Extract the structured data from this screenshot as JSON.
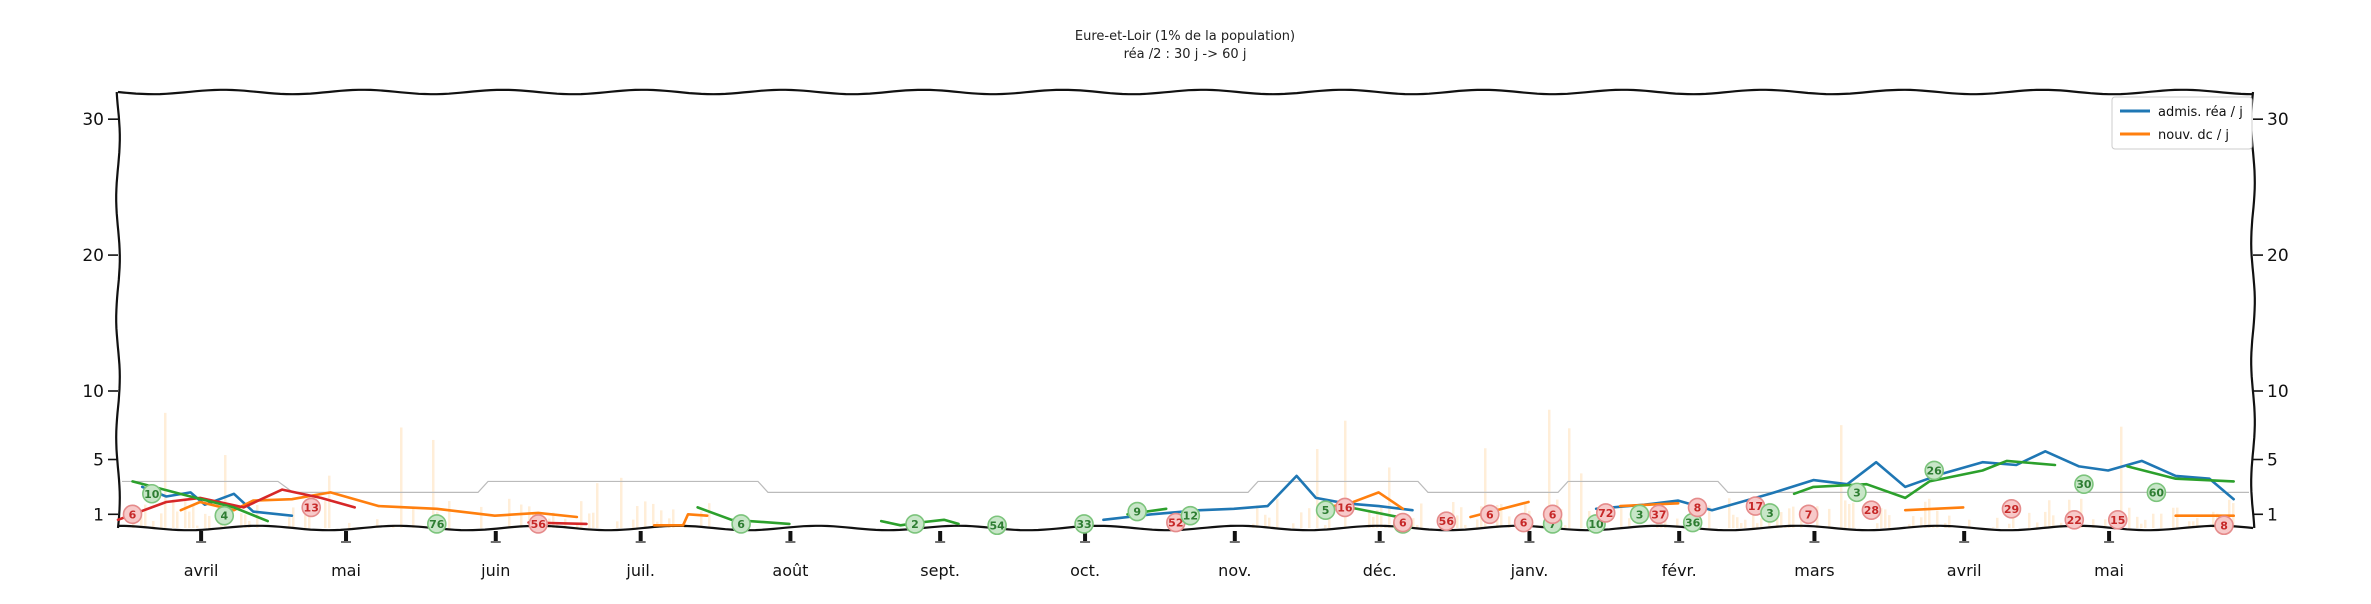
{
  "chart_data": {
    "type": "line",
    "title": "Eure-et-Loir (1% de la population)",
    "subtitle": "réa /2 : 30 j -> 60 j",
    "xlabel": "",
    "ylabel": "",
    "x_range": [
      "2020-03-15",
      "2021-05-31"
    ],
    "ylim": [
      0,
      32
    ],
    "yticks": [
      1,
      5,
      10,
      20,
      30
    ],
    "y_scale": "piecewise: 0-10 expanded, 10-32 compressed",
    "grid": false,
    "legend_position": "top-right",
    "month_ticks": [
      {
        "label": "avril",
        "date": "2020-04-01"
      },
      {
        "label": "mai",
        "date": "2020-05-01"
      },
      {
        "label": "juin",
        "date": "2020-06-01"
      },
      {
        "label": "juil.",
        "date": "2020-07-01"
      },
      {
        "label": "août",
        "date": "2020-08-01"
      },
      {
        "label": "sept.",
        "date": "2020-09-01"
      },
      {
        "label": "oct.",
        "date": "2020-10-01"
      },
      {
        "label": "nov.",
        "date": "2020-11-01"
      },
      {
        "label": "déc.",
        "date": "2020-12-01"
      },
      {
        "label": "janv.",
        "date": "2021-01-01"
      },
      {
        "label": "févr.",
        "date": "2021-02-01"
      },
      {
        "label": "mars",
        "date": "2021-03-01"
      },
      {
        "label": "avril",
        "date": "2021-04-01"
      },
      {
        "label": "mai",
        "date": "2021-05-01"
      }
    ],
    "series": [
      {
        "name": "admis. réa / j",
        "color": "#1f77b4",
        "points": [
          [
            "2020-03-20",
            3.0
          ],
          [
            "2020-03-25",
            2.3
          ],
          [
            "2020-03-30",
            2.6
          ],
          [
            "2020-04-02",
            1.7
          ],
          [
            "2020-04-08",
            2.5
          ],
          [
            "2020-04-12",
            1.2
          ],
          [
            "2020-04-20",
            0.9
          ],
          [
            "2020-05-05",
            0.8
          ],
          [
            "2020-10-05",
            0.6
          ],
          [
            "2020-10-15",
            1.0
          ],
          [
            "2020-10-25",
            1.3
          ],
          [
            "2020-11-01",
            1.4
          ],
          [
            "2020-11-08",
            1.6
          ],
          [
            "2020-11-14",
            3.8
          ],
          [
            "2020-11-18",
            2.2
          ],
          [
            "2020-11-24",
            1.8
          ],
          [
            "2020-12-01",
            1.6
          ],
          [
            "2020-12-08",
            1.3
          ],
          [
            "2021-01-01",
            1.2
          ],
          [
            "2021-01-15",
            1.4
          ],
          [
            "2021-01-25",
            1.7
          ],
          [
            "2021-02-01",
            2.0
          ],
          [
            "2021-02-08",
            1.3
          ],
          [
            "2021-02-20",
            2.5
          ],
          [
            "2021-03-01",
            3.5
          ],
          [
            "2021-03-08",
            3.2
          ],
          [
            "2021-03-14",
            4.8
          ],
          [
            "2021-03-20",
            3.0
          ],
          [
            "2021-03-28",
            4.0
          ],
          [
            "2021-04-05",
            4.8
          ],
          [
            "2021-04-12",
            4.6
          ],
          [
            "2021-04-18",
            5.6
          ],
          [
            "2021-04-25",
            4.5
          ],
          [
            "2021-05-01",
            4.2
          ],
          [
            "2021-05-08",
            4.9
          ],
          [
            "2021-05-15",
            3.8
          ],
          [
            "2021-05-22",
            3.6
          ],
          [
            "2021-05-27",
            2.1
          ]
        ]
      },
      {
        "name": "nouv. dc / j",
        "color": "#ff7f0e",
        "points": [
          [
            "2020-03-28",
            1.3
          ],
          [
            "2020-04-01",
            1.9
          ],
          [
            "2020-04-08",
            1.3
          ],
          [
            "2020-04-12",
            2.0
          ],
          [
            "2020-04-20",
            2.1
          ],
          [
            "2020-04-28",
            2.6
          ],
          [
            "2020-05-08",
            1.6
          ],
          [
            "2020-05-20",
            1.4
          ],
          [
            "2020-06-01",
            0.9
          ],
          [
            "2020-06-10",
            1.1
          ],
          [
            "2020-06-18",
            0.8
          ],
          [
            "2020-07-04",
            0.2
          ],
          [
            "2020-07-10",
            0.2
          ],
          [
            "2020-07-11",
            1.0
          ],
          [
            "2020-07-15",
            0.9
          ],
          [
            "2020-11-05",
            1.3
          ],
          [
            "2020-11-20",
            1.5
          ],
          [
            "2020-11-25",
            1.8
          ],
          [
            "2020-12-01",
            2.6
          ],
          [
            "2020-12-06",
            1.4
          ],
          [
            "2020-12-20",
            0.8
          ],
          [
            "2021-01-01",
            1.9
          ],
          [
            "2021-01-20",
            1.6
          ],
          [
            "2021-02-01",
            1.8
          ],
          [
            "2021-02-15",
            1.9
          ],
          [
            "2021-03-01",
            1.4
          ],
          [
            "2021-03-20",
            1.3
          ],
          [
            "2021-04-01",
            1.5
          ],
          [
            "2021-04-15",
            1.7
          ],
          [
            "2021-05-01",
            1.3
          ],
          [
            "2021-05-15",
            0.9
          ],
          [
            "2021-05-27",
            0.9
          ]
        ]
      },
      {
        "name": "",
        "color": "#d62728",
        "points": [
          [
            "2020-03-15",
            0.6
          ],
          [
            "2020-03-25",
            1.9
          ],
          [
            "2020-04-01",
            2.2
          ],
          [
            "2020-04-10",
            1.5
          ],
          [
            "2020-04-18",
            2.8
          ],
          [
            "2020-04-26",
            2.2
          ],
          [
            "2020-05-03",
            1.5
          ],
          [
            "2020-05-25",
            0.5
          ],
          [
            "2020-06-08",
            0.4
          ],
          [
            "2020-06-20",
            0.3
          ],
          [
            "2020-07-05",
            0.1
          ],
          [
            "2020-10-18",
            0.5
          ],
          [
            "2020-11-01",
            0.9
          ],
          [
            "2020-11-15",
            1.2
          ],
          [
            "2020-12-15",
            1.0
          ],
          [
            "2021-01-01",
            1.0
          ],
          [
            "2021-01-15",
            1.1
          ],
          [
            "2021-02-01",
            1.4
          ],
          [
            "2021-02-15",
            1.9
          ],
          [
            "2021-03-05",
            0.9
          ],
          [
            "2021-03-20",
            1.5
          ],
          [
            "2021-04-05",
            1.7
          ],
          [
            "2021-04-20",
            1.4
          ],
          [
            "2021-05-10",
            1.2
          ],
          [
            "2021-05-28",
            0.4
          ]
        ]
      },
      {
        "name": "",
        "color": "#2ca02c",
        "points": [
          [
            "2020-03-18",
            3.4
          ],
          [
            "2020-03-30",
            2.3
          ],
          [
            "2020-04-08",
            1.5
          ],
          [
            "2020-04-15",
            0.5
          ],
          [
            "2020-05-01",
            0.3
          ],
          [
            "2020-05-20",
            0.2
          ],
          [
            "2020-06-05",
            0.1
          ],
          [
            "2020-07-13",
            1.5
          ],
          [
            "2020-07-20",
            0.6
          ],
          [
            "2020-08-01",
            0.3
          ],
          [
            "2020-08-20",
            0.5
          ],
          [
            "2020-08-24",
            0.2
          ],
          [
            "2020-08-28",
            0.4
          ],
          [
            "2020-09-02",
            0.6
          ],
          [
            "2020-09-05",
            0.3
          ],
          [
            "2020-09-25",
            0.2
          ],
          [
            "2020-10-10",
            1.0
          ],
          [
            "2020-10-18",
            1.4
          ],
          [
            "2020-11-01",
            1.6
          ],
          [
            "2020-11-25",
            1.5
          ],
          [
            "2020-12-05",
            0.8
          ],
          [
            "2021-01-01",
            0.7
          ],
          [
            "2021-01-20",
            1.1
          ],
          [
            "2021-02-10",
            1.5
          ],
          [
            "2021-02-25",
            2.5
          ],
          [
            "2021-03-01",
            3.0
          ],
          [
            "2021-03-12",
            3.2
          ],
          [
            "2021-03-20",
            2.2
          ],
          [
            "2021-03-25",
            3.4
          ],
          [
            "2021-04-05",
            4.2
          ],
          [
            "2021-04-10",
            4.9
          ],
          [
            "2021-04-20",
            4.6
          ],
          [
            "2021-05-05",
            4.5
          ],
          [
            "2021-05-15",
            3.6
          ],
          [
            "2021-05-27",
            3.4
          ]
        ]
      }
    ],
    "circle_labels": [
      {
        "text": "10",
        "date": "2020-03-22",
        "y": 2.5,
        "color": "green"
      },
      {
        "text": "6",
        "date": "2020-03-18",
        "y": 1.0,
        "color": "red"
      },
      {
        "text": "4",
        "date": "2020-04-06",
        "y": 0.9,
        "color": "green"
      },
      {
        "text": "13",
        "date": "2020-04-24",
        "y": 1.5,
        "color": "red"
      },
      {
        "text": "76",
        "date": "2020-05-20",
        "y": 0.3,
        "color": "green"
      },
      {
        "text": "56",
        "date": "2020-06-10",
        "y": 0.3,
        "color": "red"
      },
      {
        "text": "6",
        "date": "2020-07-22",
        "y": 0.3,
        "color": "green"
      },
      {
        "text": "2",
        "date": "2020-08-27",
        "y": 0.3,
        "color": "green"
      },
      {
        "text": "54",
        "date": "2020-09-13",
        "y": 0.2,
        "color": "green"
      },
      {
        "text": "33",
        "date": "2020-10-01",
        "y": 0.3,
        "color": "green"
      },
      {
        "text": "9",
        "date": "2020-10-12",
        "y": 1.2,
        "color": "green"
      },
      {
        "text": "52",
        "date": "2020-10-20",
        "y": 0.4,
        "color": "red"
      },
      {
        "text": "12",
        "date": "2020-10-23",
        "y": 0.9,
        "color": "green"
      },
      {
        "text": "5",
        "date": "2020-11-20",
        "y": 1.3,
        "color": "green"
      },
      {
        "text": "16",
        "date": "2020-11-24",
        "y": 1.5,
        "color": "red"
      },
      {
        "text": "6",
        "date": "2020-12-06",
        "y": 0.3,
        "color": "green"
      },
      {
        "text": "6",
        "date": "2020-12-06",
        "y": 0.4,
        "color": "red"
      },
      {
        "text": "56",
        "date": "2020-12-15",
        "y": 0.5,
        "color": "red"
      },
      {
        "text": "6",
        "date": "2020-12-24",
        "y": 1.0,
        "color": "red"
      },
      {
        "text": "6",
        "date": "2020-12-31",
        "y": 0.4,
        "color": "red"
      },
      {
        "text": "7",
        "date": "2021-01-06",
        "y": 0.3,
        "color": "green"
      },
      {
        "text": "6",
        "date": "2021-01-06",
        "y": 1.0,
        "color": "red"
      },
      {
        "text": "10",
        "date": "2021-01-15",
        "y": 0.3,
        "color": "green"
      },
      {
        "text": "72",
        "date": "2021-01-17",
        "y": 1.1,
        "color": "red"
      },
      {
        "text": "3",
        "date": "2021-01-24",
        "y": 1.0,
        "color": "green"
      },
      {
        "text": "37",
        "date": "2021-01-28",
        "y": 1.0,
        "color": "red"
      },
      {
        "text": "36",
        "date": "2021-02-04",
        "y": 0.4,
        "color": "green"
      },
      {
        "text": "8",
        "date": "2021-02-05",
        "y": 1.5,
        "color": "red"
      },
      {
        "text": "17",
        "date": "2021-02-17",
        "y": 1.6,
        "color": "red"
      },
      {
        "text": "3",
        "date": "2021-02-20",
        "y": 1.1,
        "color": "green"
      },
      {
        "text": "7",
        "date": "2021-02-28",
        "y": 1.0,
        "color": "red"
      },
      {
        "text": "3",
        "date": "2021-03-10",
        "y": 2.6,
        "color": "green"
      },
      {
        "text": "28",
        "date": "2021-03-13",
        "y": 1.3,
        "color": "red"
      },
      {
        "text": "26",
        "date": "2021-03-26",
        "y": 4.2,
        "color": "green"
      },
      {
        "text": "29",
        "date": "2021-04-11",
        "y": 1.4,
        "color": "red"
      },
      {
        "text": "22",
        "date": "2021-04-24",
        "y": 0.6,
        "color": "red"
      },
      {
        "text": "30",
        "date": "2021-04-26",
        "y": 3.2,
        "color": "green"
      },
      {
        "text": "15",
        "date": "2021-05-03",
        "y": 0.6,
        "color": "red"
      },
      {
        "text": "60",
        "date": "2021-05-11",
        "y": 2.6,
        "color": "green"
      },
      {
        "text": "8",
        "date": "2021-05-25",
        "y": 0.2,
        "color": "red"
      }
    ],
    "legend": [
      {
        "label": "admis. réa / j",
        "color": "#1f77b4"
      },
      {
        "label": "nouv. dc / j",
        "color": "#ff7f0e"
      }
    ]
  }
}
